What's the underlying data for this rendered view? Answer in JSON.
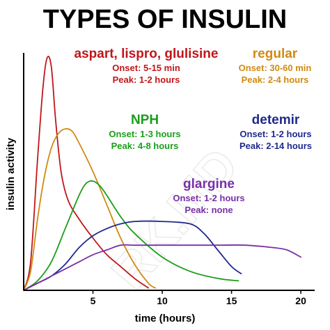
{
  "chart_data": {
    "type": "line",
    "title": "TYPES OF INSULIN",
    "xlabel": "time (hours)",
    "ylabel": "insulin activity",
    "xlim": [
      0,
      21
    ],
    "ylim": [
      0,
      1
    ],
    "xticks": [
      5,
      10,
      15,
      20
    ],
    "grid": false,
    "watermark": "RK.MD",
    "series": [
      {
        "name": "aspart, lispro, glulisine",
        "color": "#c0161b",
        "notes": [
          "Onset: 5-15 min",
          "Peak: 1-2 hours"
        ],
        "x": [
          0,
          0.5,
          1.0,
          1.4,
          1.7,
          2.0,
          2.3,
          2.7,
          3.2,
          4,
          5,
          6,
          7,
          8,
          9
        ],
        "y": [
          0,
          0.12,
          0.55,
          0.86,
          0.98,
          0.94,
          0.72,
          0.5,
          0.38,
          0.3,
          0.22,
          0.15,
          0.1,
          0.05,
          0.01
        ]
      },
      {
        "name": "regular",
        "color": "#d08a12",
        "notes": [
          "Onset: 30-60 min",
          "Peak: 2-4 hours"
        ],
        "x": [
          0,
          0.5,
          1,
          1.5,
          2,
          2.5,
          3,
          3.5,
          4,
          5,
          6,
          7,
          8,
          9,
          9.5
        ],
        "y": [
          0,
          0.08,
          0.3,
          0.48,
          0.6,
          0.66,
          0.68,
          0.67,
          0.62,
          0.5,
          0.36,
          0.22,
          0.11,
          0.03,
          0.01
        ]
      },
      {
        "name": "NPH",
        "color": "#1a9e1a",
        "notes": [
          "Onset: 1-3 hours",
          "Peak: 4-8 hours"
        ],
        "x": [
          0,
          1,
          2,
          3,
          4,
          4.5,
          5,
          5.5,
          6,
          7,
          8,
          10,
          12,
          14,
          15.5
        ],
        "y": [
          0,
          0.04,
          0.12,
          0.26,
          0.4,
          0.45,
          0.46,
          0.44,
          0.4,
          0.31,
          0.24,
          0.14,
          0.08,
          0.05,
          0.04
        ]
      },
      {
        "name": "detemir",
        "color": "#1e2a8c",
        "notes": [
          "Onset: 1-2 hours",
          "Peak: 2-14 hours"
        ],
        "x": [
          0,
          1,
          2,
          3,
          4,
          5,
          6,
          7,
          8,
          10,
          12,
          13,
          14,
          15,
          15.7
        ],
        "y": [
          0,
          0.03,
          0.06,
          0.11,
          0.18,
          0.23,
          0.26,
          0.28,
          0.29,
          0.29,
          0.28,
          0.24,
          0.17,
          0.1,
          0.07
        ]
      },
      {
        "name": "glargine",
        "color": "#7a2fa8",
        "notes": [
          "Onset: 1-2 hours",
          "Peak: none"
        ],
        "x": [
          0,
          1,
          2,
          3,
          4,
          5,
          6,
          7,
          8,
          10,
          12,
          14,
          16,
          18,
          19,
          20
        ],
        "y": [
          0,
          0.03,
          0.06,
          0.09,
          0.12,
          0.15,
          0.17,
          0.19,
          0.19,
          0.19,
          0.19,
          0.19,
          0.19,
          0.18,
          0.17,
          0.14
        ]
      }
    ]
  }
}
